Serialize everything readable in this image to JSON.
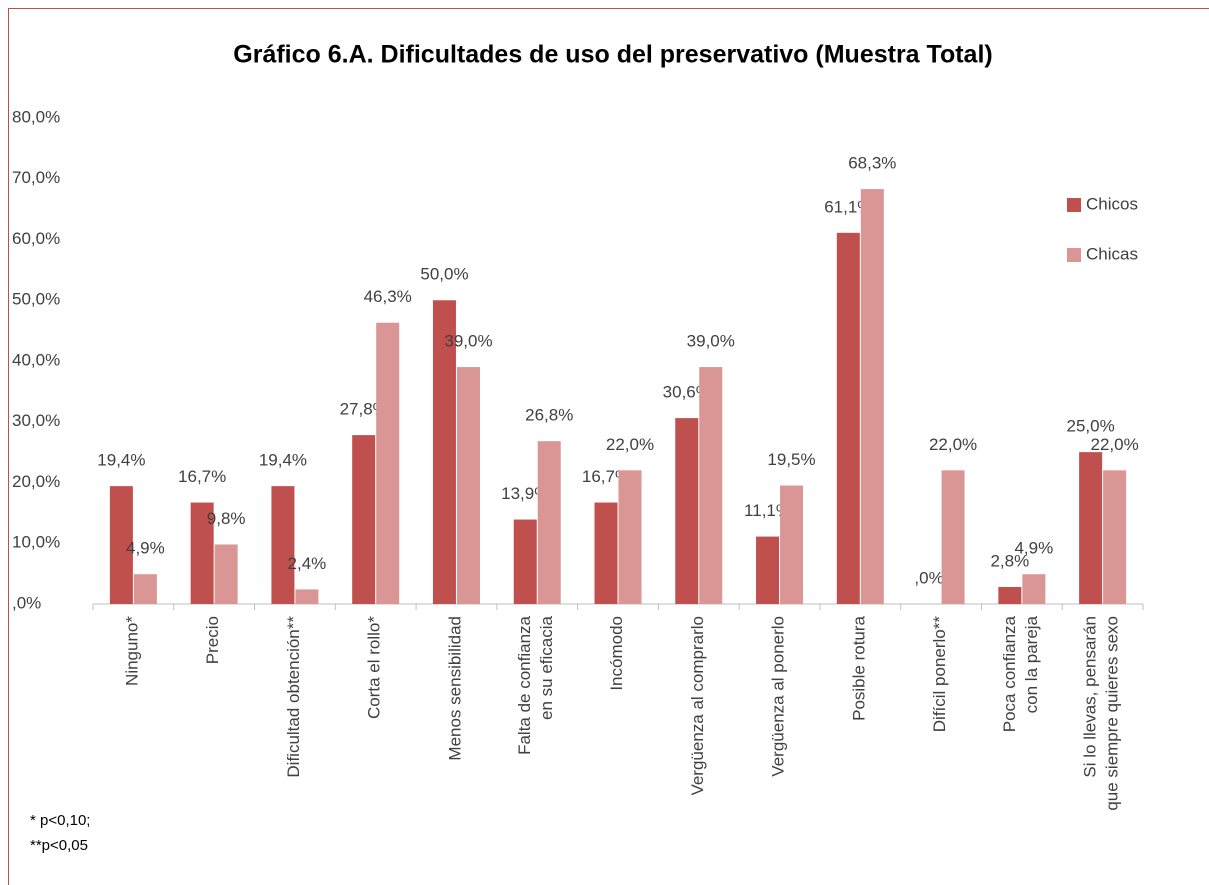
{
  "chart_data": {
    "type": "bar",
    "title": "Gráfico 6.A. Dificultades de uso del preservativo (Muestra Total)",
    "categories": [
      "Ninguno*",
      "Precio",
      "Dificultad obtención**",
      "Corta el rollo*",
      "Menos sensibilidad",
      "Falta de confianza\nen su eficacia",
      "Incómodo",
      "Vergüenza al comprarlo",
      "Vergüenza al ponerlo",
      "Posible rotura",
      "Difícil ponerlo**",
      "Poca confianza\ncon la pareja",
      "Si lo llevas, pensarán\nque siempre quieres sexo"
    ],
    "series": [
      {
        "name": "Chicos",
        "color": "#c0504d",
        "values": [
          19.4,
          16.7,
          19.4,
          27.8,
          50.0,
          13.9,
          16.7,
          30.6,
          11.1,
          61.1,
          0,
          2.8,
          25.0
        ],
        "value_labels": [
          "19,4%",
          "16,7%",
          "19,4%",
          "27,8%",
          "50,0%",
          "13,9%",
          "16,7%",
          "30,6%",
          "11,1%",
          "61,1%",
          ",0%",
          "2,8%",
          "25,0%"
        ]
      },
      {
        "name": "Chicas",
        "color": "#d99694",
        "values": [
          4.9,
          9.8,
          2.4,
          46.3,
          39.0,
          26.8,
          22.0,
          39.0,
          19.5,
          68.3,
          22.0,
          4.9,
          22.0
        ],
        "value_labels": [
          "4,9%",
          "9,8%",
          "2,4%",
          "46,3%",
          "39,0%",
          "26,8%",
          "22,0%",
          "39,0%",
          "19,5%",
          "68,3%",
          "22,0%",
          "4,9%",
          "22,0%"
        ]
      }
    ],
    "ylim": [
      0,
      80
    ],
    "yticks": [
      {
        "value": 0,
        "label": ",0%"
      },
      {
        "value": 10,
        "label": "10,0%"
      },
      {
        "value": 20,
        "label": "20,0%"
      },
      {
        "value": 30,
        "label": "30,0%"
      },
      {
        "value": 40,
        "label": "40,0%"
      },
      {
        "value": 50,
        "label": "50,0%"
      },
      {
        "value": 60,
        "label": "60,0%"
      },
      {
        "value": 70,
        "label": "70,0%"
      },
      {
        "value": 80,
        "label": "80,0%"
      }
    ],
    "legend": "right",
    "footnotes": [
      "* p<0,10;",
      "**p<0,05"
    ]
  }
}
